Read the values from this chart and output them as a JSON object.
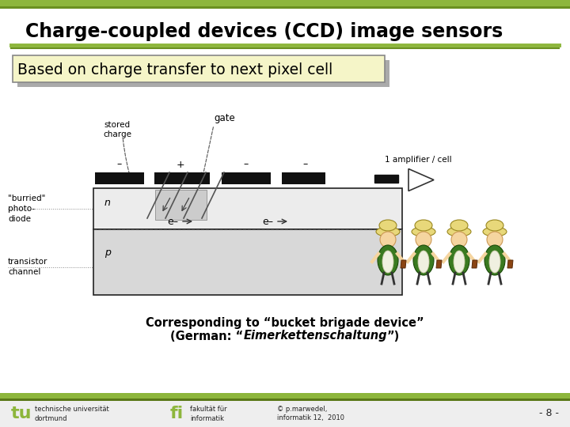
{
  "title": "Charge-coupled devices (CCD) image sensors",
  "subtitle": "Based on charge transfer to next pixel cell",
  "bg_color": "#ffffff",
  "title_color": "#000000",
  "accent_line_color": "#8db63c",
  "subtitle_box_color": "#f5f5c8",
  "subtitle_box_border": "#888888",
  "footer_bar_color": "#8db63c",
  "footer_text_left1": "technische universität",
  "footer_text_left2": "dortmund",
  "footer_text_mid1": "fakultät für",
  "footer_text_mid2": "informatik",
  "footer_text_right1": "© p.marwedel,",
  "footer_text_right2": "informatik 12,  2010",
  "footer_page": "- 8 -",
  "diagram_label_stored": "stored\ncharge",
  "diagram_label_gate": "gate",
  "diagram_label_amplifier": "1 amplifier / cell",
  "diagram_label_buried": "\"burried\"\nphoto-\ndiode",
  "diagram_label_n": "n",
  "diagram_label_p": "p",
  "diagram_label_transistor": "transistor\nchannel",
  "diagram_label_eminus1": "e–",
  "diagram_label_eminus2": "e–",
  "diagram_label_minus1": "–",
  "diagram_label_plus": "+",
  "diagram_label_minus2": "–",
  "diagram_label_minus3": "–",
  "corresponding_line1": "Corresponding to “bucket brigade device”",
  "corresponding_line2_pre": "(German: “",
  "corresponding_line2_italic": "Eimerkettenschaltung",
  "corresponding_line2_post": "”)"
}
